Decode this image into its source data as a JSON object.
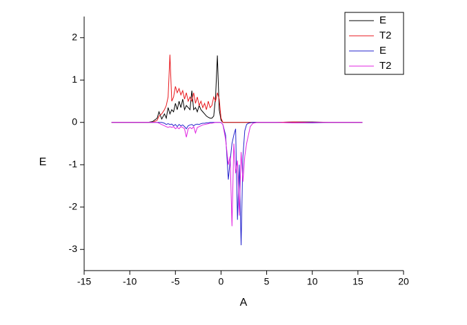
{
  "chart_data": {
    "type": "line",
    "x_label": "A",
    "y_label": "E",
    "x": [
      -12,
      -8,
      -7.5,
      -7,
      -6.8,
      -6.5,
      -6.2,
      -6,
      -5.8,
      -5.6,
      -5.4,
      -5.2,
      -5,
      -4.8,
      -4.6,
      -4.4,
      -4.2,
      -4,
      -3.8,
      -3.6,
      -3.4,
      -3.2,
      -3,
      -2.8,
      -2.6,
      -2.4,
      -2.2,
      -2,
      -1.8,
      -1.6,
      -1.4,
      -1.2,
      -1,
      -0.8,
      -0.6,
      -0.4,
      -0.2,
      0,
      0.2,
      0.5,
      0.8,
      1,
      1.2,
      1.4,
      1.6,
      1.8,
      2,
      2.2,
      2.4,
      2.6,
      2.8,
      3,
      3.2,
      3.5,
      4,
      6,
      8,
      10,
      12,
      15.5
    ],
    "series": [
      {
        "name": "E",
        "color": "#000000",
        "values": [
          0,
          0,
          0.02,
          0.1,
          0.25,
          0.08,
          0.2,
          0.1,
          0.35,
          0.2,
          0.3,
          0.25,
          0.45,
          0.3,
          0.5,
          0.35,
          0.55,
          0.3,
          0.4,
          0.35,
          0.3,
          0.75,
          0.3,
          0.35,
          0.25,
          0.4,
          0.3,
          0.25,
          0.2,
          0.15,
          0.12,
          0.1,
          0.1,
          0.15,
          0.6,
          1.58,
          0.3,
          0.05,
          0,
          0,
          0,
          0,
          0,
          0,
          0,
          0,
          0,
          0,
          0,
          0,
          0,
          0,
          0,
          0,
          0,
          0,
          0.01,
          0.01,
          0,
          0
        ]
      },
      {
        "name": "T2",
        "color": "#e8161b",
        "values": [
          0,
          0,
          0,
          0.05,
          0.15,
          0.2,
          0.3,
          0.4,
          0.6,
          1.6,
          0.5,
          0.6,
          0.85,
          0.7,
          0.8,
          0.65,
          0.75,
          0.55,
          0.7,
          0.5,
          0.6,
          0.5,
          0.7,
          0.45,
          0.6,
          0.4,
          0.5,
          0.35,
          0.45,
          0.3,
          0.5,
          0.35,
          0.4,
          0.6,
          0.5,
          0.7,
          0.55,
          0.1,
          0,
          0,
          0,
          0,
          0,
          0,
          0,
          0,
          0,
          0,
          0,
          0,
          0,
          0,
          0,
          0,
          0,
          0,
          0.01,
          0,
          0,
          0
        ]
      },
      {
        "name": "E",
        "color": "#2222cc",
        "values": [
          0,
          0,
          0,
          0,
          0,
          0,
          -0.02,
          -0.05,
          -0.03,
          -0.05,
          -0.04,
          -0.08,
          -0.05,
          -0.1,
          -0.05,
          -0.08,
          -0.06,
          -0.1,
          -0.15,
          -0.08,
          -0.06,
          -0.05,
          -0.08,
          -0.05,
          -0.04,
          -0.05,
          -0.03,
          -0.02,
          -0.02,
          -0.01,
          -0.01,
          0,
          0,
          0,
          0,
          0,
          0,
          0,
          -0.05,
          -0.3,
          -1.35,
          -0.9,
          -0.5,
          -0.3,
          -0.15,
          -2.3,
          -1.0,
          -2.9,
          -0.8,
          -0.2,
          -0.05,
          -0.02,
          -0.01,
          0,
          0,
          0,
          -0.01,
          -0.01,
          0,
          0
        ]
      },
      {
        "name": "T2",
        "color": "#e020e0",
        "values": [
          0,
          0,
          0,
          0,
          -0.02,
          -0.05,
          -0.08,
          -0.1,
          -0.12,
          -0.1,
          -0.12,
          -0.1,
          -0.15,
          -0.12,
          -0.15,
          -0.1,
          -0.12,
          -0.15,
          -0.35,
          -0.15,
          -0.12,
          -0.15,
          -0.1,
          -0.25,
          -0.12,
          -0.1,
          -0.08,
          -0.06,
          -0.05,
          -0.04,
          -0.03,
          -0.02,
          -0.02,
          -0.01,
          0,
          0,
          0,
          0,
          -0.05,
          -0.4,
          -1.0,
          -0.8,
          -2.45,
          -0.5,
          -1.2,
          -0.9,
          -2.2,
          -0.7,
          -1.4,
          -0.8,
          -0.5,
          -0.3,
          -0.1,
          -0.02,
          0,
          0,
          -0.01,
          0,
          0,
          0
        ]
      }
    ],
    "xlim": [
      -15,
      20
    ],
    "xticks": [
      -15,
      -10,
      -5,
      0,
      5,
      10,
      15,
      20
    ],
    "ylim": [
      -3.5,
      2.5
    ],
    "yticks": [
      -3,
      -2,
      -1,
      0,
      1,
      2
    ],
    "legend": "top-right",
    "grid": false
  }
}
